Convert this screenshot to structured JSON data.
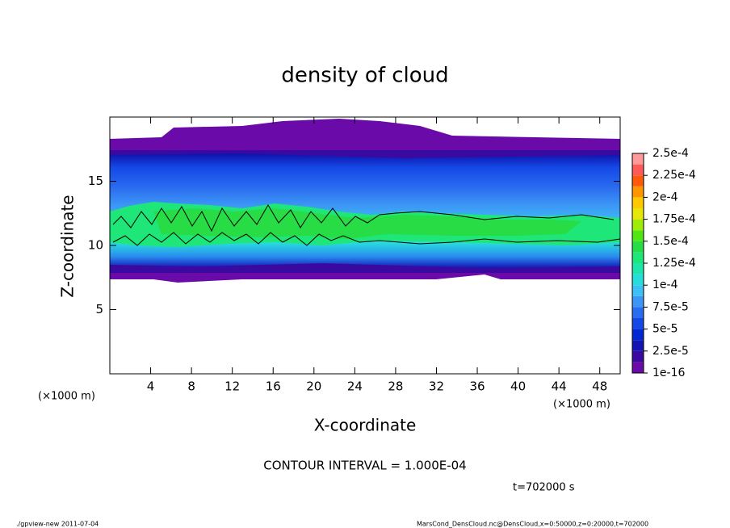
{
  "chart_data": {
    "type": "contour",
    "title": "density of cloud",
    "x_label": "X-coordinate",
    "y_label": "Z-coordinate",
    "x_unit": "(×1000 m)",
    "y_unit": "(×1000 m)",
    "xlim": [
      0,
      50
    ],
    "xticks": [
      4,
      8,
      12,
      16,
      20,
      24,
      28,
      32,
      36,
      40,
      44,
      48
    ],
    "ylim": [
      0,
      20
    ],
    "yticks": [
      5,
      10,
      15
    ],
    "colorbar": {
      "levels": [
        {
          "value": 1e-16,
          "label": "1e-16"
        },
        {
          "value": 2.5e-05,
          "label": "2.5e-5"
        },
        {
          "value": 5e-05,
          "label": "5e-5"
        },
        {
          "value": 7.5e-05,
          "label": "7.5e-5"
        },
        {
          "value": 0.0001,
          "label": "1e-4"
        },
        {
          "value": 0.000125,
          "label": "1.25e-4"
        },
        {
          "value": 0.00015,
          "label": "1.5e-4"
        },
        {
          "value": 0.000175,
          "label": "1.75e-4"
        },
        {
          "value": 0.0002,
          "label": "2e-4"
        },
        {
          "value": 0.000225,
          "label": "2.25e-4"
        },
        {
          "value": 0.00025,
          "label": "2.5e-4"
        }
      ],
      "colors": [
        "#6a0aa8",
        "#3a0aa0",
        "#1414b4",
        "#0028d2",
        "#1448e6",
        "#2a6cf0",
        "#3c96f5",
        "#3cc0f5",
        "#28dcdc",
        "#1ee6aa",
        "#1ee678",
        "#28dc46",
        "#50e614",
        "#a0eb0a",
        "#e6e60a",
        "#ffc800",
        "#ff9600",
        "#ff5a0a",
        "#ff5a5a",
        "#ff9a9a"
      ]
    },
    "contour_interval": "CONTOUR INTERVAL = 1.000E-04",
    "time": "t=702000 s",
    "footer_left": "./gpview-new   2011-07-04",
    "footer_right": "MarsCond_DensCloud.nc@DensCloud,x=0:50000,z=0:20000,t=702000"
  }
}
